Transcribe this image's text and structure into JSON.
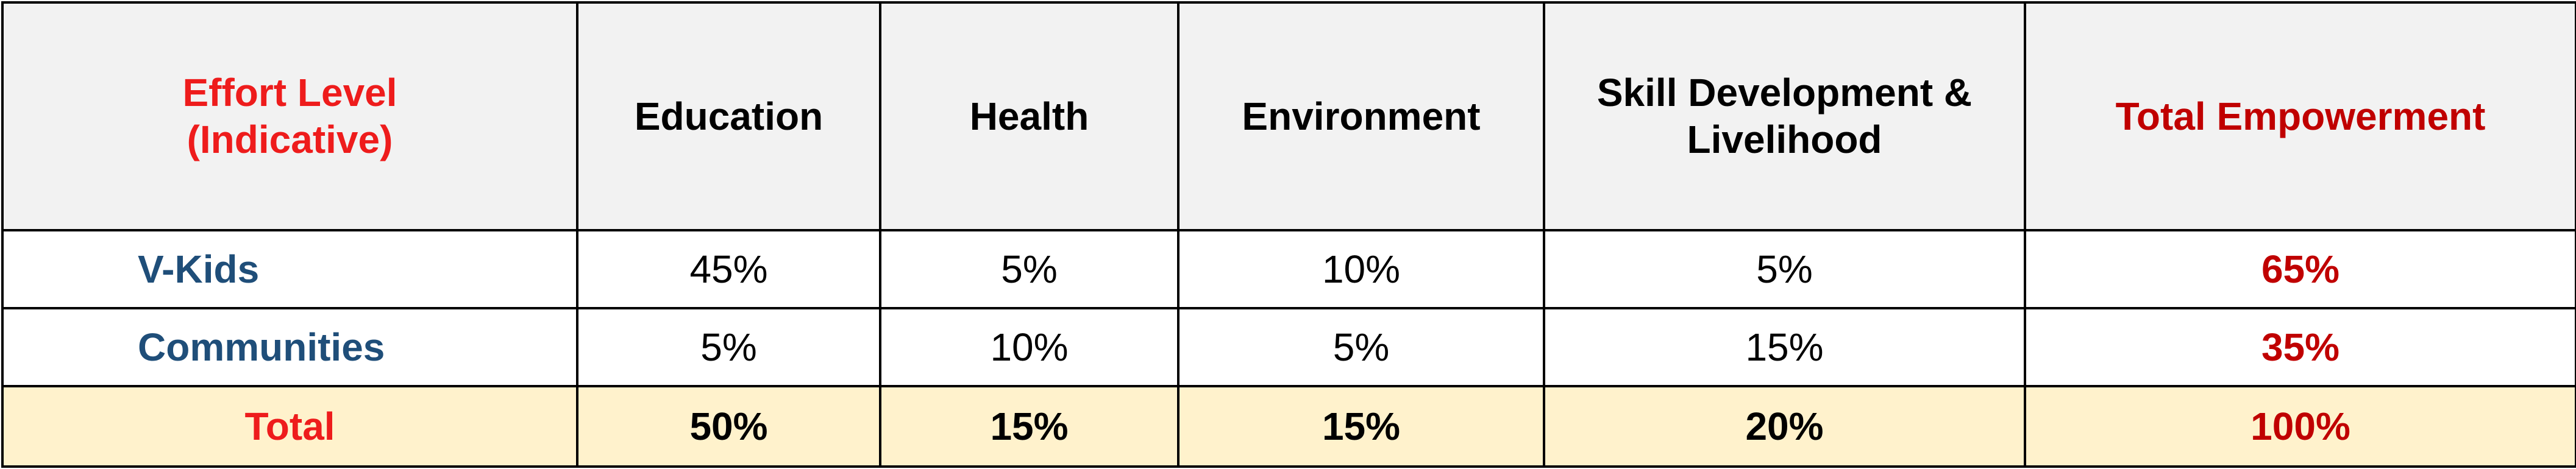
{
  "table": {
    "header": [
      "Effort Level (Indicative)",
      "Education",
      "Health",
      "Environment",
      "Skill Development & Livelihood",
      "Total Empowerment"
    ],
    "rows": [
      [
        "V-Kids",
        "45%",
        "5%",
        "10%",
        "5%",
        "65%"
      ],
      [
        "Communities",
        "5%",
        "10%",
        "5%",
        "15%",
        "35%"
      ],
      [
        "Total",
        "50%",
        "15%",
        "15%",
        "20%",
        "100%"
      ]
    ]
  }
}
